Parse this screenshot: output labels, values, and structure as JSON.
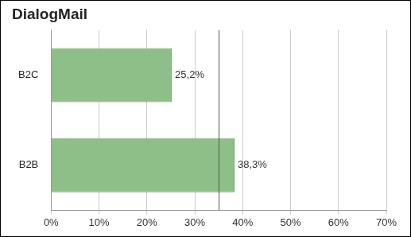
{
  "chart_data": {
    "type": "bar",
    "orientation": "horizontal",
    "title": "DialogMail",
    "categories": [
      "B2C",
      "B2B"
    ],
    "values": [
      25.2,
      38.3
    ],
    "value_labels": [
      "25,2%",
      "38,3%"
    ],
    "data_labels": true,
    "color": "#8fbf88",
    "xlim": [
      0,
      70
    ],
    "xticks": [
      {
        "value": 0,
        "label": "0%"
      },
      {
        "value": 10,
        "label": "10%"
      },
      {
        "value": 20,
        "label": "20%"
      },
      {
        "value": 30,
        "label": "30%"
      },
      {
        "value": 40,
        "label": "40%"
      },
      {
        "value": 50,
        "label": "50%"
      },
      {
        "value": 60,
        "label": "60%"
      },
      {
        "value": 70,
        "label": "70%"
      }
    ],
    "grid": true,
    "reference_line": 35
  }
}
